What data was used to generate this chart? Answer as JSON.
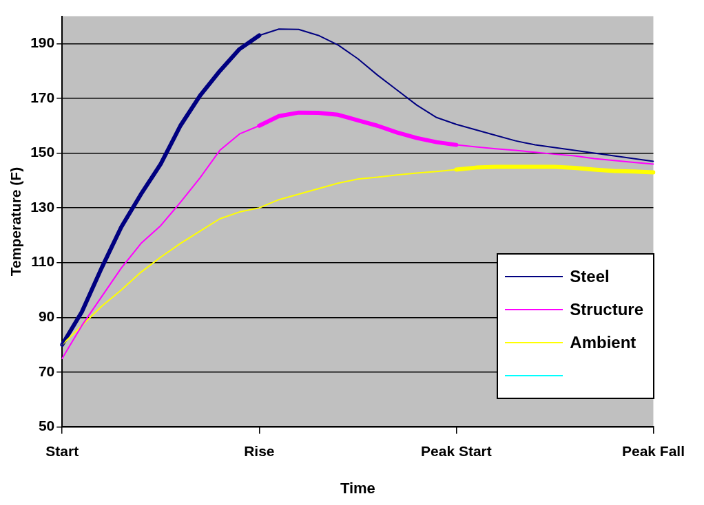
{
  "chart_data": {
    "type": "line",
    "xlabel": "Time",
    "ylabel": "Temperature (F)",
    "categories": [
      "Start",
      null,
      null,
      null,
      null,
      null,
      null,
      null,
      null,
      null,
      "Rise",
      null,
      null,
      null,
      null,
      null,
      null,
      null,
      null,
      null,
      "Peak Start",
      null,
      null,
      null,
      null,
      null,
      null,
      null,
      null,
      null,
      "Peak Fall"
    ],
    "ylim": [
      50,
      200
    ],
    "yticks": [
      50,
      70,
      90,
      110,
      130,
      150,
      170,
      190
    ],
    "grid": "y",
    "legend": "bottom right",
    "marker": "none",
    "line_style": "solid",
    "series": [
      {
        "name": "Steel",
        "color": "#000080",
        "values": [
          80,
          92,
          108,
          123,
          135,
          146,
          160,
          171,
          180,
          188,
          193,
          195.3,
          195.2,
          193,
          189.5,
          184.5,
          178.5,
          173,
          167.5,
          163,
          160.5,
          158.5,
          156.5,
          154.5,
          153,
          152,
          151,
          150,
          149,
          148,
          147
        ]
      },
      {
        "name": "Structure",
        "color": "#ff00ff",
        "values": [
          75,
          87,
          97.5,
          108,
          117,
          123.5,
          132,
          141,
          151,
          157,
          160,
          163.5,
          164.8,
          164.7,
          164,
          162,
          160,
          157.5,
          155.5,
          154,
          153,
          152.3,
          151.6,
          151,
          150.3,
          149.6,
          149,
          148,
          147.3,
          146.6,
          146
        ]
      },
      {
        "name": "Ambient",
        "color": "#ffff00",
        "values": [
          80,
          87,
          94,
          100,
          106.5,
          112,
          117,
          121.5,
          126,
          128.5,
          130,
          133,
          135,
          137,
          139,
          140.5,
          141.2,
          142,
          142.7,
          143.3,
          144,
          144.7,
          145,
          145,
          145,
          145,
          144.6,
          144,
          143.5,
          143.3,
          143
        ]
      },
      {
        "color": "#00ffff",
        "values": [
          null,
          null,
          null,
          null,
          null,
          null,
          null,
          null,
          null,
          null,
          null,
          null,
          null,
          null,
          null,
          null,
          null,
          null,
          null,
          null,
          null,
          null,
          null,
          null,
          null,
          null,
          null,
          null,
          null,
          null,
          null
        ]
      },
      {
        "color": "#000080",
        "values": [
          80,
          92,
          108,
          123,
          135,
          146,
          160,
          171,
          180,
          188,
          193,
          null,
          null,
          null,
          null,
          null,
          null,
          null,
          null,
          null,
          null,
          null,
          null,
          null,
          null,
          null,
          null,
          null,
          null,
          null,
          null
        ]
      },
      {
        "color": "#ff00ff",
        "values": [
          null,
          null,
          null,
          null,
          null,
          null,
          null,
          null,
          null,
          null,
          160,
          163.5,
          164.8,
          164.7,
          164,
          162,
          160,
          157.5,
          155.5,
          154,
          153,
          null,
          null,
          null,
          null,
          null,
          null,
          null,
          null,
          null,
          null
        ]
      },
      {
        "color": "#ffff00",
        "values": [
          null,
          null,
          null,
          null,
          null,
          null,
          null,
          null,
          null,
          null,
          null,
          null,
          null,
          null,
          null,
          null,
          null,
          null,
          null,
          null,
          144,
          144.7,
          145,
          145,
          145,
          145,
          144.6,
          144,
          143.5,
          143.3,
          143
        ]
      }
    ]
  }
}
